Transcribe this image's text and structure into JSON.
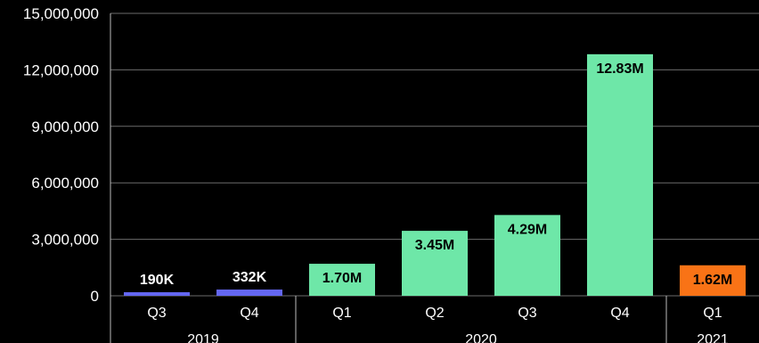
{
  "chart_data": {
    "type": "bar",
    "title": "",
    "xlabel": "",
    "ylabel": "",
    "ylim": [
      0,
      15000000
    ],
    "yticks": [
      0,
      3000000,
      6000000,
      9000000,
      12000000,
      15000000
    ],
    "ytick_labels": [
      "0",
      "3,000,000",
      "6,000,000",
      "9,000,000",
      "12,000,000",
      "15,000,000"
    ],
    "grid": true,
    "categories": [
      {
        "quarter": "Q3",
        "year": "2019",
        "value": 190000,
        "label": "190K",
        "color": "#6366f1"
      },
      {
        "quarter": "Q4",
        "year": "2019",
        "value": 332000,
        "label": "332K",
        "color": "#6366f1"
      },
      {
        "quarter": "Q1",
        "year": "2020",
        "value": 1700000,
        "label": "1.70M",
        "color": "#6ee7a8"
      },
      {
        "quarter": "Q2",
        "year": "2020",
        "value": 3450000,
        "label": "3.45M",
        "color": "#6ee7a8"
      },
      {
        "quarter": "Q3",
        "year": "2020",
        "value": 4290000,
        "label": "4.29M",
        "color": "#6ee7a8"
      },
      {
        "quarter": "Q4",
        "year": "2020",
        "value": 12830000,
        "label": "12.83M",
        "color": "#6ee7a8"
      },
      {
        "quarter": "Q1",
        "year": "2021",
        "value": 1620000,
        "label": "1.62M",
        "color": "#f97316"
      }
    ],
    "year_groups": [
      {
        "year": "2019",
        "count": 2
      },
      {
        "year": "2020",
        "count": 4
      },
      {
        "year": "2021",
        "count": 1
      }
    ]
  }
}
